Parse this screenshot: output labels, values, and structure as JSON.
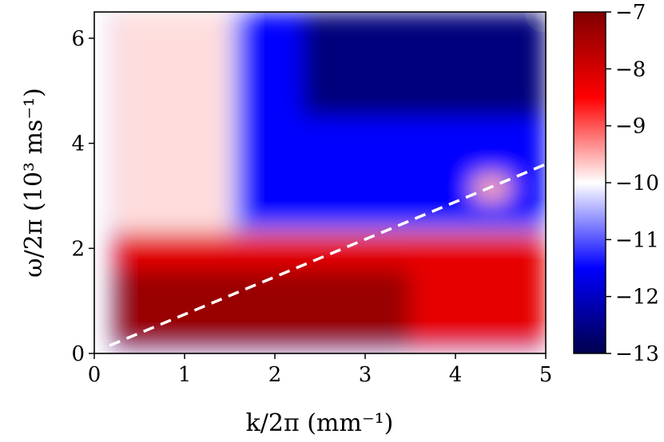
{
  "chart_data": {
    "type": "heatmap",
    "title": "",
    "xlabel": "k/2π (mm⁻¹)",
    "ylabel": "ω/2π (10³ ms⁻¹)",
    "xlim": [
      0,
      5
    ],
    "ylim": [
      0,
      6.5
    ],
    "x_ticks": [
      0,
      1,
      2,
      3,
      4,
      5
    ],
    "x_tick_labels": [
      "0",
      "1",
      "2",
      "3",
      "4",
      "5"
    ],
    "y_ticks": [
      0,
      2,
      4,
      6
    ],
    "y_tick_labels": [
      "0",
      "2",
      "4",
      "6"
    ],
    "colorbar": {
      "range": [
        -13,
        -7
      ],
      "ticks": [
        -13,
        -12,
        -11,
        -10,
        -9,
        -8,
        -7
      ],
      "tick_labels": [
        "−13",
        "−12",
        "−11",
        "−10",
        "−9",
        "−8",
        "−7"
      ],
      "colormap": "seismic",
      "colors": {
        "low": "#00004c",
        "mid": "#ffffff",
        "high": "#800000",
        "blue": "#0000ff",
        "red": "#ff0000"
      }
    },
    "data_x_range": [
      0.17,
      5
    ],
    "dashed_line": {
      "x": [
        0.17,
        5
      ],
      "y": [
        0.15,
        3.6
      ],
      "color": "#ffffff",
      "style": "dashed"
    },
    "regions": [
      {
        "description": "near-white/light-red vertical band",
        "x_range": [
          0.2,
          1.5
        ],
        "y_range": [
          2.3,
          6.5
        ],
        "value": -9.8
      },
      {
        "description": "red band",
        "x_range": [
          0.2,
          5
        ],
        "y_range": [
          0.1,
          2.3
        ],
        "value": -8.2
      },
      {
        "description": "dark red along dispersion line",
        "x_range": [
          0.2,
          3.5
        ],
        "y_range": [
          0.1,
          1.6
        ],
        "value": -7.3
      },
      {
        "description": "blue upper region",
        "x_range": [
          1.6,
          5
        ],
        "y_range": [
          2.4,
          6.5
        ],
        "value": -11.5
      },
      {
        "description": "dark blue top",
        "x_range": [
          2.3,
          5
        ],
        "y_range": [
          4.5,
          6.5
        ],
        "value": -12.6
      },
      {
        "description": "light spot",
        "x_range": [
          4.2,
          4.6
        ],
        "y_range": [
          2.9,
          3.4
        ],
        "value": -9.5
      }
    ]
  }
}
